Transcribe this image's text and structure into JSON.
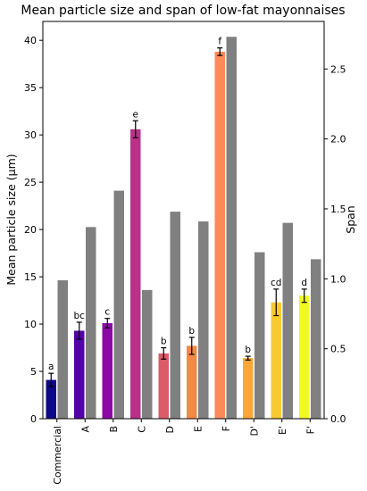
{
  "chart_data": {
    "type": "bar",
    "title": "Mean particle size and span of low-fat mayonnaises",
    "ylabel": "Mean particle size (μm)",
    "y2label": "Span",
    "categories": [
      "Commercial",
      "A",
      "B",
      "C",
      "D",
      "E",
      "F",
      "D'",
      "E'",
      "F'"
    ],
    "ylim": [
      0,
      42
    ],
    "y2lim": [
      0,
      2.84
    ],
    "yticks": [
      0,
      5,
      10,
      15,
      20,
      25,
      30,
      35,
      40
    ],
    "y2ticks": [
      "0.0",
      "0.5",
      "1.0",
      "1.5",
      "2.0",
      "2.5"
    ],
    "series": [
      {
        "name": "Mean particle size",
        "axis": "left",
        "values": [
          4.1,
          9.3,
          10.1,
          30.6,
          6.9,
          7.7,
          38.8,
          6.4,
          12.3,
          13.0
        ],
        "errors": [
          0.7,
          0.9,
          0.5,
          0.9,
          0.6,
          0.9,
          0.4,
          0.2,
          1.4,
          0.7
        ],
        "colors": [
          "#0d0887",
          "#5302a3",
          "#8b0aa5",
          "#b83289",
          "#db5c68",
          "#f48849",
          "#fe8a5a",
          "#fca636",
          "#f9c932",
          "#f0f921"
        ],
        "sig_labels": [
          "a",
          "bc",
          "c",
          "e",
          "b",
          "b",
          "f",
          "b",
          "cd",
          "d"
        ]
      },
      {
        "name": "Span",
        "axis": "right",
        "values": [
          0.99,
          1.37,
          1.63,
          0.92,
          1.48,
          1.41,
          2.73,
          1.19,
          1.4,
          1.14
        ],
        "color": "#808080"
      }
    ],
    "grid": false
  }
}
